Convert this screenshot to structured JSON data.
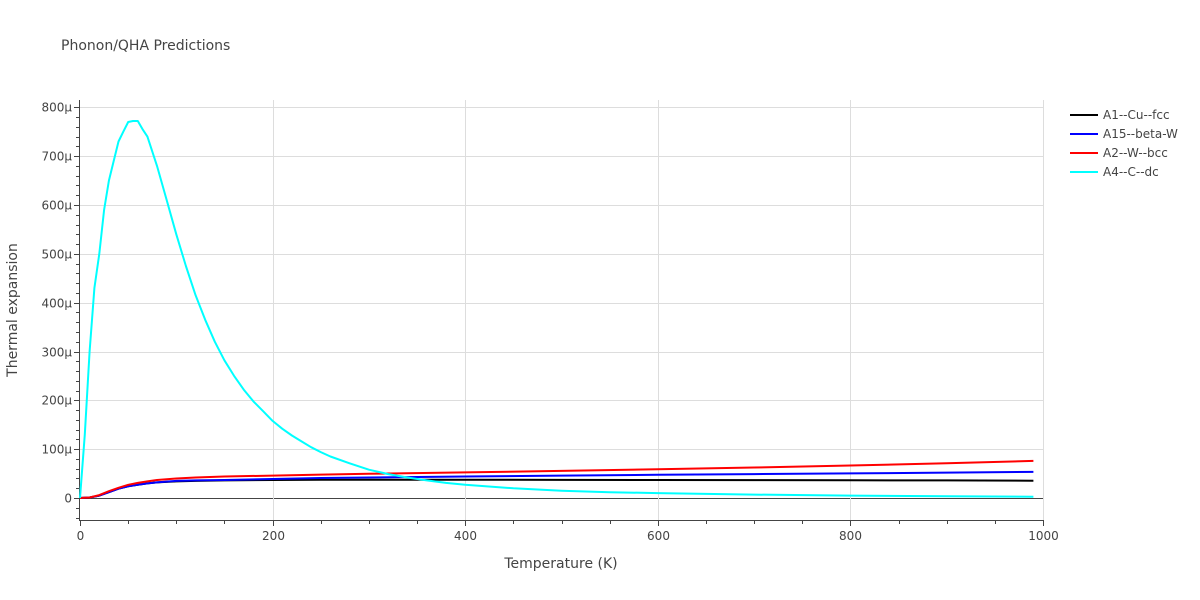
{
  "chart_data": {
    "type": "line",
    "title": "Phonon/QHA Predictions",
    "xlabel": "Temperature (K)",
    "ylabel": "Thermal expansion",
    "xlim": [
      0,
      1000
    ],
    "ylim": [
      -45,
      815
    ],
    "x_ticks": [
      0,
      200,
      400,
      600,
      800,
      1000
    ],
    "x_tick_labels": [
      "0",
      "200",
      "400",
      "600",
      "800",
      "1000"
    ],
    "y_ticks": [
      0,
      100,
      200,
      300,
      400,
      500,
      600,
      700,
      800
    ],
    "y_tick_labels": [
      "0",
      "100μ",
      "200μ",
      "300μ",
      "400μ",
      "500μ",
      "600μ",
      "700μ",
      "800μ"
    ],
    "y_unit": "μ (×1e-6)",
    "grid": true,
    "legend_position": "top-right",
    "series": [
      {
        "name": "A1--Cu--fcc",
        "color": "#000000",
        "x": [
          0,
          10,
          20,
          30,
          40,
          50,
          60,
          70,
          80,
          100,
          120,
          150,
          200,
          250,
          300,
          400,
          500,
          600,
          700,
          800,
          900,
          990
        ],
        "y": [
          0,
          1,
          5,
          12,
          19,
          24,
          27,
          30,
          32,
          34,
          35,
          36,
          37,
          37.5,
          37.5,
          37.5,
          37.2,
          37,
          36.7,
          36.3,
          36,
          35.5
        ]
      },
      {
        "name": "A15--beta-W",
        "color": "#0000ff",
        "x": [
          0,
          10,
          20,
          30,
          40,
          50,
          60,
          70,
          80,
          100,
          120,
          150,
          200,
          250,
          300,
          400,
          500,
          600,
          700,
          800,
          900,
          990
        ],
        "y": [
          0,
          1,
          5,
          12,
          19,
          24,
          27,
          30,
          32,
          35,
          36,
          37,
          39,
          41,
          42,
          44,
          46,
          47.5,
          49,
          50.5,
          52,
          53.5
        ]
      },
      {
        "name": "A2--W--bcc",
        "color": "#ff0000",
        "x": [
          0,
          10,
          20,
          30,
          40,
          50,
          60,
          70,
          80,
          100,
          120,
          150,
          200,
          250,
          300,
          400,
          500,
          600,
          700,
          800,
          900,
          990
        ],
        "y": [
          0,
          1,
          6,
          14,
          21,
          27,
          31,
          34,
          37,
          40,
          42,
          44,
          46,
          48,
          49.5,
          52.5,
          55.5,
          59,
          62.5,
          66.5,
          71,
          76
        ]
      },
      {
        "name": "A4--C--dc",
        "color": "#00ffff",
        "x": [
          0,
          5,
          10,
          15,
          20,
          25,
          30,
          35,
          40,
          45,
          50,
          55,
          60,
          65,
          70,
          80,
          90,
          100,
          110,
          120,
          130,
          140,
          150,
          160,
          170,
          180,
          190,
          200,
          210,
          220,
          230,
          240,
          250,
          260,
          280,
          300,
          320,
          340,
          360,
          380,
          400,
          450,
          500,
          550,
          600,
          650,
          700,
          800,
          900,
          990
        ],
        "y": [
          0,
          130,
          300,
          430,
          500,
          590,
          650,
          690,
          730,
          750,
          770,
          772,
          772,
          755,
          740,
          680,
          610,
          540,
          475,
          415,
          365,
          320,
          282,
          250,
          222,
          198,
          178,
          158,
          142,
          128,
          116,
          104,
          94,
          85,
          71,
          58,
          49,
          42,
          36,
          31,
          27,
          20,
          15,
          12,
          10,
          8.5,
          7,
          5,
          3.8,
          2.8
        ]
      }
    ]
  }
}
